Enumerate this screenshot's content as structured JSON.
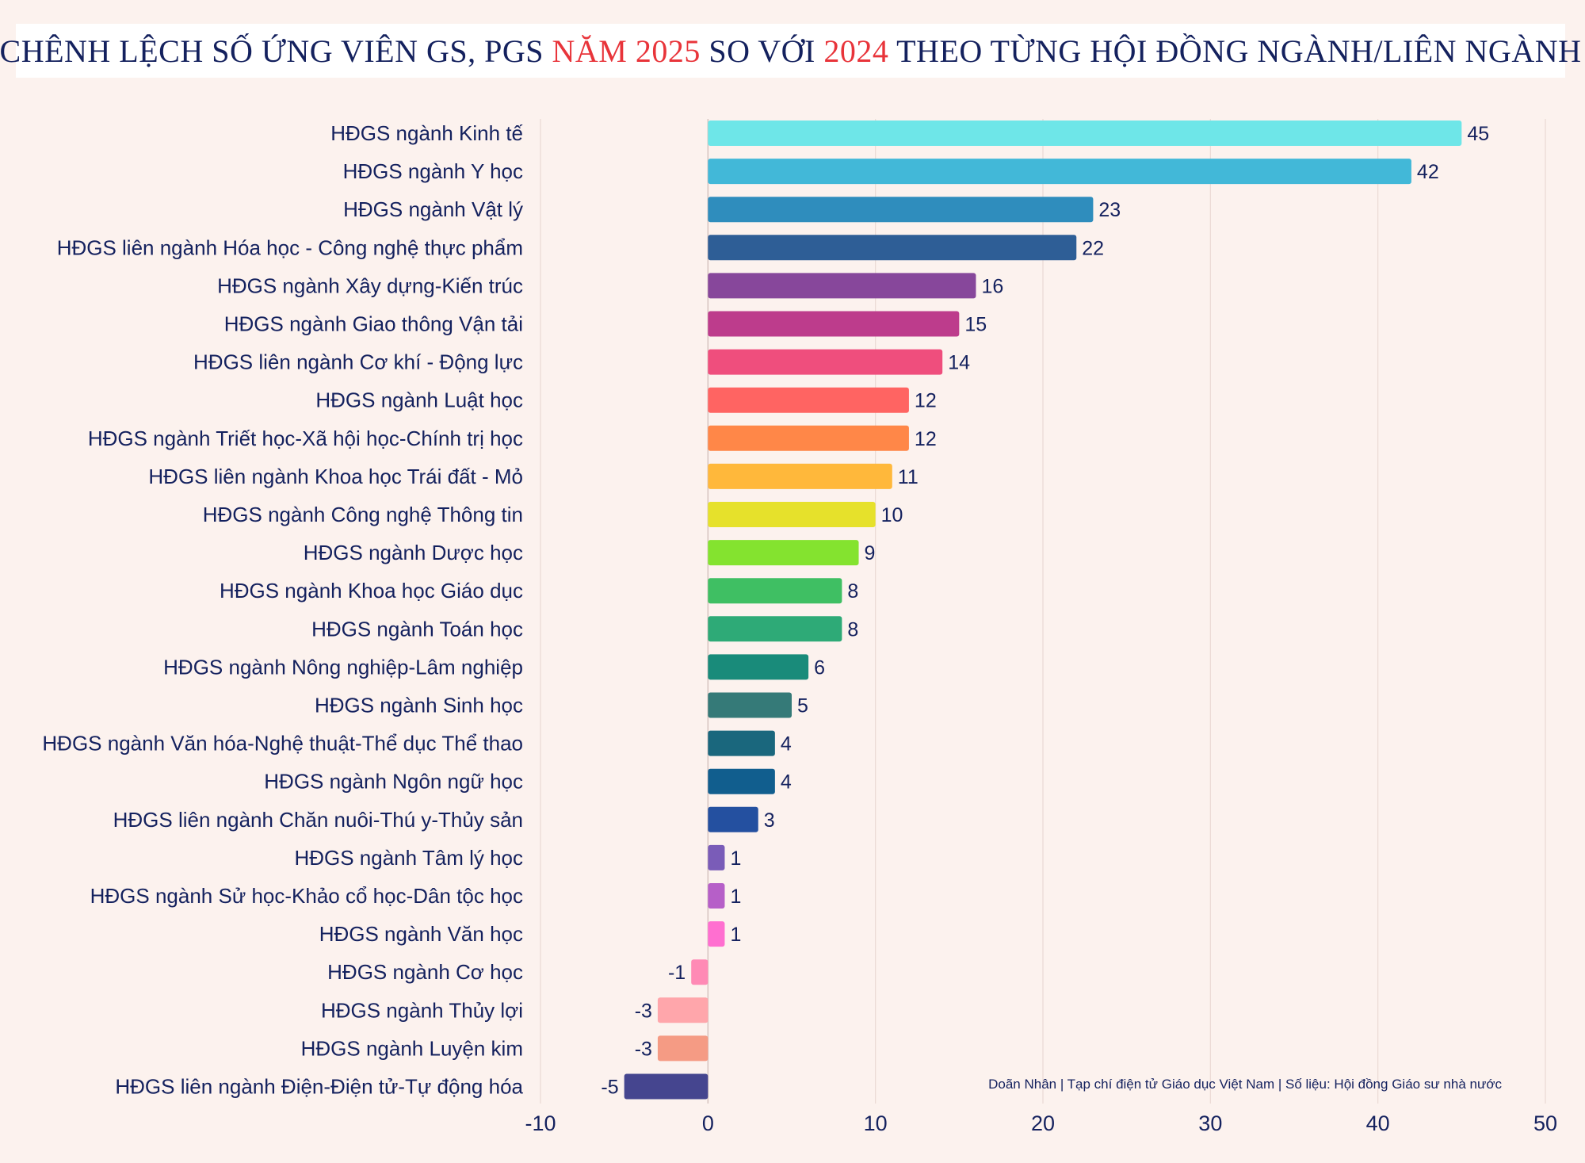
{
  "title": {
    "part1": "CHÊNH LỆCH SỐ ỨNG VIÊN GS, PGS ",
    "hl1": "NĂM 2025",
    "part2": " SO VỚI ",
    "hl2": "2024",
    "part3": " THEO TỪNG HỘI ĐỒNG NGÀNH/LIÊN NGÀNH"
  },
  "credit": "Doãn Nhân | Tạp chí điện tử Giáo dục Việt Nam | Số liệu: Hội đồng Giáo sư nhà nước",
  "chart_data": {
    "type": "bar",
    "orientation": "horizontal",
    "title": "CHÊNH LỆCH SỐ ỨNG VIÊN GS, PGS NĂM 2025 SO VỚI 2024 THEO TỪNG HỘI ĐỒNG NGÀNH/LIÊN NGÀNH",
    "xlabel": "",
    "ylabel": "",
    "xlim": [
      -10,
      50
    ],
    "xticks": [
      -10,
      0,
      10,
      20,
      30,
      40,
      50
    ],
    "grid": true,
    "categories": [
      "HĐGS ngành Kinh tế",
      "HĐGS ngành Y học",
      "HĐGS ngành Vật lý",
      "HĐGS liên ngành Hóa học - Công nghệ thực phẩm",
      "HĐGS ngành Xây dựng-Kiến trúc",
      "HĐGS ngành Giao thông Vận tải",
      "HĐGS liên ngành Cơ khí - Động lực",
      "HĐGS ngành Luật học",
      "HĐGS ngành Triết học-Xã hội học-Chính trị học",
      "HĐGS liên ngành Khoa học Trái đất - Mỏ",
      "HĐGS ngành Công nghệ Thông tin",
      "HĐGS ngành Dược học",
      "HĐGS ngành Khoa học Giáo dục",
      "HĐGS ngành Toán học",
      "HĐGS ngành Nông nghiệp-Lâm nghiệp",
      "HĐGS ngành Sinh học",
      "HĐGS ngành Văn hóa-Nghệ thuật-Thể dục Thể thao",
      "HĐGS ngành Ngôn ngữ học",
      "HĐGS liên ngành Chăn nuôi-Thú y-Thủy sản",
      "HĐGS ngành Tâm lý học",
      "HĐGS ngành Sử học-Khảo cổ học-Dân tộc học",
      "HĐGS ngành Văn học",
      "HĐGS ngành Cơ học",
      "HĐGS ngành Thủy lợi",
      "HĐGS ngành Luyện kim",
      "HĐGS liên ngành Điện-Điện tử-Tự động hóa"
    ],
    "values": [
      45,
      42,
      23,
      22,
      16,
      15,
      14,
      12,
      12,
      11,
      10,
      9,
      8,
      8,
      6,
      5,
      4,
      4,
      3,
      1,
      1,
      1,
      -1,
      -3,
      -3,
      -5
    ],
    "colors": [
      "#6ee6e8",
      "#42b8d8",
      "#2f8dbd",
      "#2e5e96",
      "#87479b",
      "#bd3c8c",
      "#ef4e7d",
      "#ff6462",
      "#ff8748",
      "#ffb83b",
      "#e6e12b",
      "#84e32f",
      "#3fbf63",
      "#2eaa77",
      "#198b7a",
      "#357a78",
      "#1a677d",
      "#115e8e",
      "#2450a0",
      "#7a5cb8",
      "#b65fc8",
      "#ff6fd0",
      "#ff8ab5",
      "#ffa6ab",
      "#f59b84",
      "#45458f"
    ],
    "bar_label_color": "#14215e",
    "text_color": "#14215e",
    "grid_color": "#ead9d4",
    "zero_line_color": "#d8c6c2"
  }
}
